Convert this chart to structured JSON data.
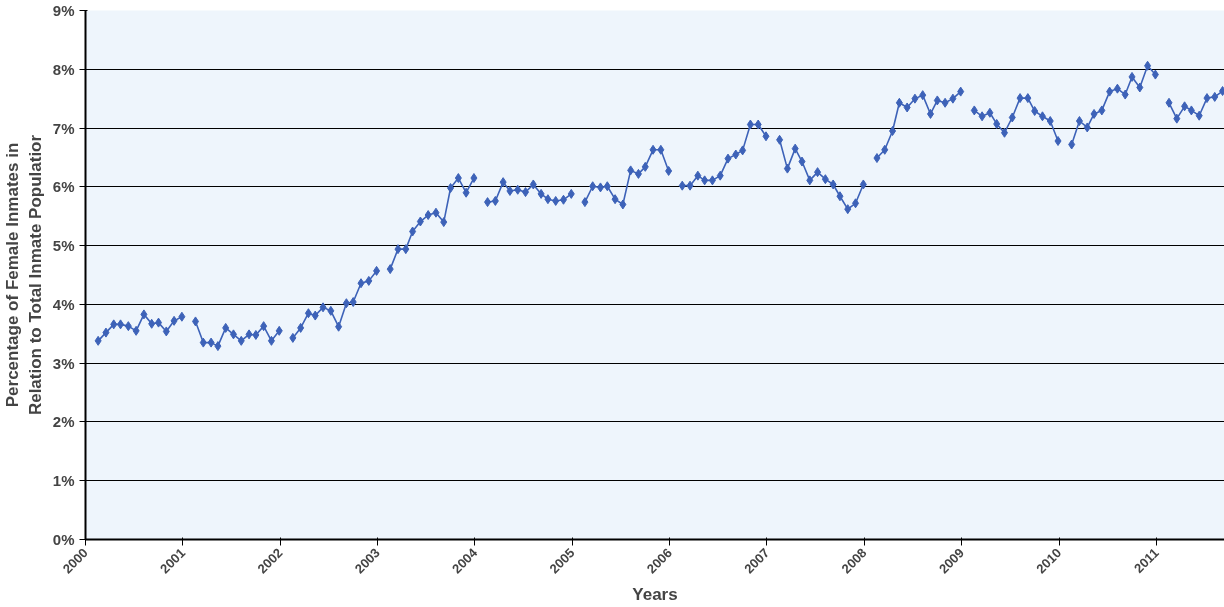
{
  "chart_data": {
    "type": "line",
    "xlabel": "Years",
    "ylabel": "Percentage of Female Inmates in Relation to Total Inmate Populatior",
    "x": [
      2000.13,
      2000.21,
      2000.29,
      2000.36,
      2000.44,
      2000.52,
      2000.6,
      2000.68,
      2000.75,
      2000.83,
      2000.91,
      2000.99,
      2001.06,
      2001.13,
      2001.21,
      2001.29,
      2001.36,
      2001.44,
      2001.52,
      2001.6,
      2001.68,
      2001.75,
      2001.83,
      2001.91,
      2001.99,
      2002.06,
      2002.13,
      2002.21,
      2002.29,
      2002.36,
      2002.44,
      2002.52,
      2002.6,
      2002.68,
      2002.75,
      2002.83,
      2002.91,
      2002.99,
      2003.06,
      2003.13,
      2003.21,
      2003.29,
      2003.36,
      2003.44,
      2003.52,
      2003.6,
      2003.68,
      2003.75,
      2003.83,
      2003.91,
      2003.99,
      2004.06,
      2004.13,
      2004.21,
      2004.29,
      2004.36,
      2004.44,
      2004.52,
      2004.6,
      2004.68,
      2004.75,
      2004.83,
      2004.91,
      2004.99,
      2005.06,
      2005.13,
      2005.21,
      2005.29,
      2005.36,
      2005.44,
      2005.52,
      2005.6,
      2005.68,
      2005.75,
      2005.83,
      2005.91,
      2005.99,
      2006.06,
      2006.13,
      2006.21,
      2006.29,
      2006.36,
      2006.44,
      2006.52,
      2006.6,
      2006.68,
      2006.75,
      2006.83,
      2006.91,
      2006.99,
      2007.06,
      2007.13,
      2007.21,
      2007.29,
      2007.36,
      2007.44,
      2007.52,
      2007.6,
      2007.68,
      2007.75,
      2007.83,
      2007.91,
      2007.99,
      2008.06,
      2008.13,
      2008.21,
      2008.29,
      2008.36,
      2008.44,
      2008.52,
      2008.6,
      2008.68,
      2008.75,
      2008.83,
      2008.91,
      2008.99,
      2009.06,
      2009.13,
      2009.21,
      2009.29,
      2009.36,
      2009.44,
      2009.52,
      2009.6,
      2009.68,
      2009.75,
      2009.83,
      2009.91,
      2009.99,
      2010.06,
      2010.13,
      2010.21,
      2010.29,
      2010.36,
      2010.44,
      2010.52,
      2010.6,
      2010.68,
      2010.75,
      2010.83,
      2010.91,
      2010.99,
      2011.06,
      2011.13,
      2011.21,
      2011.29,
      2011.36,
      2011.44,
      2011.52,
      2011.6,
      2011.68
    ],
    "series": [
      {
        "color": "#3d62b8",
        "values": [
          3.38,
          3.52,
          3.66,
          3.66,
          3.63,
          3.55,
          3.83,
          3.67,
          3.69,
          3.54,
          3.72,
          3.79,
          null,
          3.71,
          3.35,
          3.35,
          3.29,
          3.6,
          3.49,
          3.38,
          3.49,
          3.48,
          3.63,
          3.38,
          3.55,
          null,
          3.43,
          3.6,
          3.85,
          3.81,
          3.95,
          3.89,
          3.62,
          4.02,
          4.04,
          4.36,
          4.4,
          4.57,
          null,
          4.6,
          4.94,
          4.94,
          5.24,
          5.41,
          5.52,
          5.56,
          5.4,
          5.98,
          6.15,
          5.9,
          6.15,
          null,
          5.74,
          5.76,
          6.08,
          5.93,
          5.95,
          5.91,
          6.04,
          5.88,
          5.79,
          5.76,
          5.78,
          5.88,
          null,
          5.74,
          6.01,
          5.99,
          6.01,
          5.79,
          5.7,
          6.28,
          6.22,
          6.34,
          6.63,
          6.63,
          6.27,
          null,
          6.02,
          6.02,
          6.19,
          6.11,
          6.11,
          6.19,
          6.48,
          6.55,
          6.62,
          7.06,
          7.06,
          6.86,
          null,
          6.8,
          6.31,
          6.65,
          6.43,
          6.11,
          6.25,
          6.13,
          6.04,
          5.84,
          5.62,
          5.72,
          6.04,
          null,
          6.49,
          6.63,
          6.95,
          7.43,
          7.35,
          7.5,
          7.56,
          7.24,
          7.47,
          7.43,
          7.5,
          7.62,
          null,
          7.3,
          7.2,
          7.26,
          7.07,
          6.92,
          7.18,
          7.51,
          7.51,
          7.29,
          7.2,
          7.12,
          6.78,
          null,
          6.72,
          7.12,
          7.01,
          7.24,
          7.3,
          7.62,
          7.67,
          7.57,
          7.87,
          7.69,
          8.06,
          7.91,
          null,
          7.43,
          7.16,
          7.37,
          7.3,
          7.21,
          7.51,
          7.53,
          7.63
        ]
      }
    ],
    "xlim": [
      2000,
      2011.7
    ],
    "xticks": [
      2000,
      2001,
      2002,
      2003,
      2004,
      2005,
      2006,
      2007,
      2008,
      2009,
      2010,
      2011
    ],
    "ylim": [
      0,
      9
    ],
    "yticks": [
      {
        "value": 0,
        "label": "0%"
      },
      {
        "value": 1,
        "label": "1%"
      },
      {
        "value": 2,
        "label": "2%"
      },
      {
        "value": 3,
        "label": "3%"
      },
      {
        "value": 4,
        "label": "4%"
      },
      {
        "value": 5,
        "label": "5%"
      },
      {
        "value": 6,
        "label": "6%"
      },
      {
        "value": 7,
        "label": "7%"
      },
      {
        "value": 8,
        "label": "8%"
      },
      {
        "value": 9,
        "label": "9%"
      }
    ],
    "grid": "y",
    "marker": "diamond",
    "line_style": "solid"
  }
}
